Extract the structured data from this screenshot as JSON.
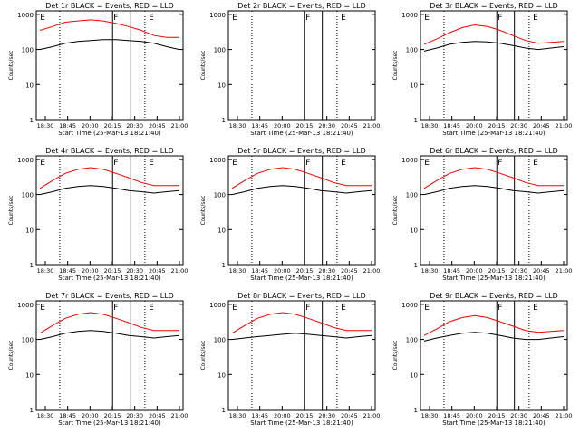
{
  "page": {
    "x_axis_label": "Start Time (25-Mar-13 18:21:40)",
    "y_axis_label": "Counts/sec",
    "x_ticks": [
      "18:30",
      "18:45",
      "20:00",
      "20:15",
      "20:30",
      "20:45",
      "21:00"
    ],
    "y_ticks": [
      "1",
      "10",
      "100",
      "1000"
    ],
    "colors": {
      "events": "#000000",
      "lld": "#ff0000",
      "frame": "#000000"
    }
  },
  "chart_data": [
    {
      "type": "line",
      "title": "Det 1r BLACK = Events, RED = LLD",
      "markers": [
        "E",
        "F",
        "E"
      ],
      "empty": false,
      "series": [
        {
          "name": "Events",
          "values": [
            100,
            120,
            150,
            170,
            180,
            190,
            190,
            180,
            170,
            150,
            120,
            100
          ]
        },
        {
          "name": "LLD",
          "values": [
            350,
            450,
            600,
            650,
            700,
            650,
            550,
            450,
            350,
            250,
            220,
            220
          ]
        }
      ]
    },
    {
      "type": "line",
      "title": "Det 2r BLACK = Events, RED = LLD",
      "markers": [
        "E",
        "F",
        "E"
      ],
      "empty": true,
      "series": [
        {
          "name": "Events",
          "values": []
        },
        {
          "name": "LLD",
          "values": []
        }
      ]
    },
    {
      "type": "line",
      "title": "Det 3r BLACK = Events, RED = LLD",
      "markers": [
        "E",
        "F",
        "E"
      ],
      "empty": false,
      "series": [
        {
          "name": "Events",
          "values": [
            90,
            110,
            140,
            160,
            170,
            165,
            150,
            130,
            110,
            100,
            110,
            120
          ]
        },
        {
          "name": "LLD",
          "values": [
            140,
            200,
            300,
            420,
            500,
            450,
            350,
            250,
            180,
            150,
            160,
            170
          ]
        }
      ]
    },
    {
      "type": "line",
      "title": "Det 4r BLACK = Events, RED = LLD",
      "markers": [
        "E",
        "F",
        "E"
      ],
      "empty": false,
      "series": [
        {
          "name": "Events",
          "values": [
            100,
            120,
            150,
            170,
            180,
            170,
            150,
            130,
            120,
            110,
            120,
            130
          ]
        },
        {
          "name": "LLD",
          "values": [
            150,
            250,
            400,
            520,
            580,
            520,
            400,
            300,
            220,
            180,
            180,
            180
          ]
        }
      ]
    },
    {
      "type": "line",
      "title": "Det 5r BLACK = Events, RED = LLD",
      "markers": [
        "E",
        "F",
        "E"
      ],
      "empty": false,
      "series": [
        {
          "name": "Events",
          "values": [
            100,
            120,
            150,
            170,
            180,
            170,
            150,
            130,
            120,
            110,
            120,
            130
          ]
        },
        {
          "name": "LLD",
          "values": [
            150,
            250,
            400,
            520,
            580,
            520,
            400,
            300,
            220,
            180,
            180,
            180
          ]
        }
      ]
    },
    {
      "type": "line",
      "title": "Det 6r BLACK = Events, RED = LLD",
      "markers": [
        "E",
        "F",
        "E"
      ],
      "empty": false,
      "series": [
        {
          "name": "Events",
          "values": [
            100,
            120,
            150,
            170,
            180,
            170,
            150,
            130,
            120,
            110,
            120,
            130
          ]
        },
        {
          "name": "LLD",
          "values": [
            150,
            250,
            400,
            520,
            580,
            520,
            400,
            300,
            220,
            180,
            180,
            180
          ]
        }
      ]
    },
    {
      "type": "line",
      "title": "Det 7r BLACK = Events, RED = LLD",
      "markers": [
        "E",
        "F",
        "E"
      ],
      "empty": false,
      "series": [
        {
          "name": "Events",
          "values": [
            100,
            120,
            150,
            170,
            180,
            170,
            150,
            130,
            120,
            110,
            120,
            130
          ]
        },
        {
          "name": "LLD",
          "values": [
            150,
            250,
            400,
            520,
            580,
            520,
            400,
            300,
            220,
            180,
            180,
            180
          ]
        }
      ]
    },
    {
      "type": "line",
      "title": "Det 8r BLACK = Events, RED = LLD",
      "markers": [
        "E",
        "F",
        "E"
      ],
      "empty": false,
      "series": [
        {
          "name": "Events",
          "values": [
            100,
            110,
            120,
            130,
            140,
            150,
            140,
            130,
            120,
            110,
            120,
            130
          ]
        },
        {
          "name": "LLD",
          "values": [
            150,
            250,
            400,
            520,
            580,
            520,
            400,
            300,
            220,
            180,
            180,
            180
          ]
        }
      ]
    },
    {
      "type": "line",
      "title": "Det 9r BLACK = Events, RED = LLD",
      "markers": [
        "E",
        "F",
        "E"
      ],
      "empty": false,
      "series": [
        {
          "name": "Events",
          "values": [
            90,
            110,
            130,
            150,
            160,
            150,
            130,
            110,
            100,
            100,
            110,
            120
          ]
        },
        {
          "name": "LLD",
          "values": [
            130,
            200,
            320,
            420,
            480,
            420,
            320,
            240,
            180,
            160,
            170,
            180
          ]
        }
      ]
    }
  ]
}
